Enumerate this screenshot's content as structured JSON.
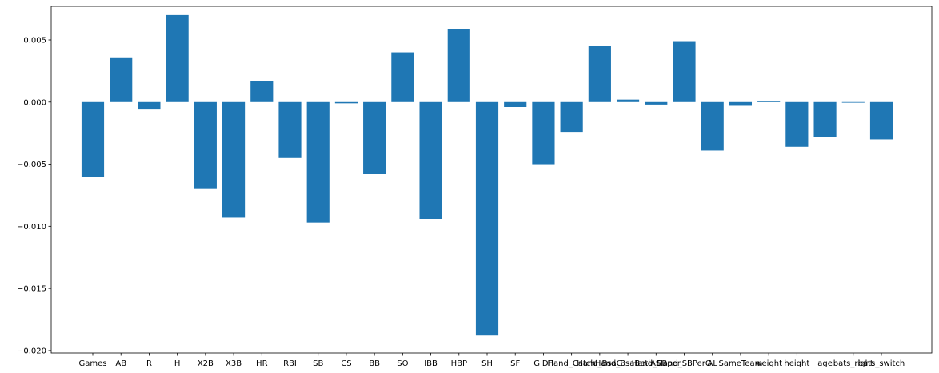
{
  "chart_data": {
    "type": "bar",
    "title": "",
    "xlabel": "",
    "ylabel": "",
    "color": "#1f77b4",
    "ylim": [
      -0.0202,
      0.0077
    ],
    "yticks": [
      0.005,
      0.0,
      -0.005,
      -0.01,
      -0.015,
      -0.02
    ],
    "ytick_labels": [
      "0.005",
      "0.000",
      "−0.005",
      "−0.010",
      "−0.015",
      "−0.020"
    ],
    "grid": false,
    "categories": [
      "Games",
      "AB",
      "R",
      "H",
      "X2B",
      "X3B",
      "HR",
      "RBI",
      "SB",
      "CS",
      "BB",
      "SO",
      "IBB",
      "HBP",
      "SH",
      "SF",
      "GIDP",
      "Hand_Catch",
      "Hand_BsaG",
      "Hand_BsaBetiAS",
      "Hand_SBper",
      "Hand_SBPerG",
      "AL",
      "SameTeam",
      "weight",
      "height",
      "age",
      "bats_right",
      "bats_switch"
    ],
    "values": [
      -0.006,
      0.0036,
      -0.0006,
      0.007,
      -0.007,
      -0.0093,
      0.0017,
      -0.0045,
      -0.0097,
      -0.0001,
      -0.0058,
      0.004,
      -0.0094,
      0.0059,
      -0.0188,
      -0.0004,
      -0.005,
      -0.0024,
      0.0045,
      0.0002,
      -0.0002,
      0.0049,
      -0.0039,
      -0.0003,
      0.0001,
      -0.0036,
      -0.0028,
      -5e-05,
      -0.003
    ]
  }
}
